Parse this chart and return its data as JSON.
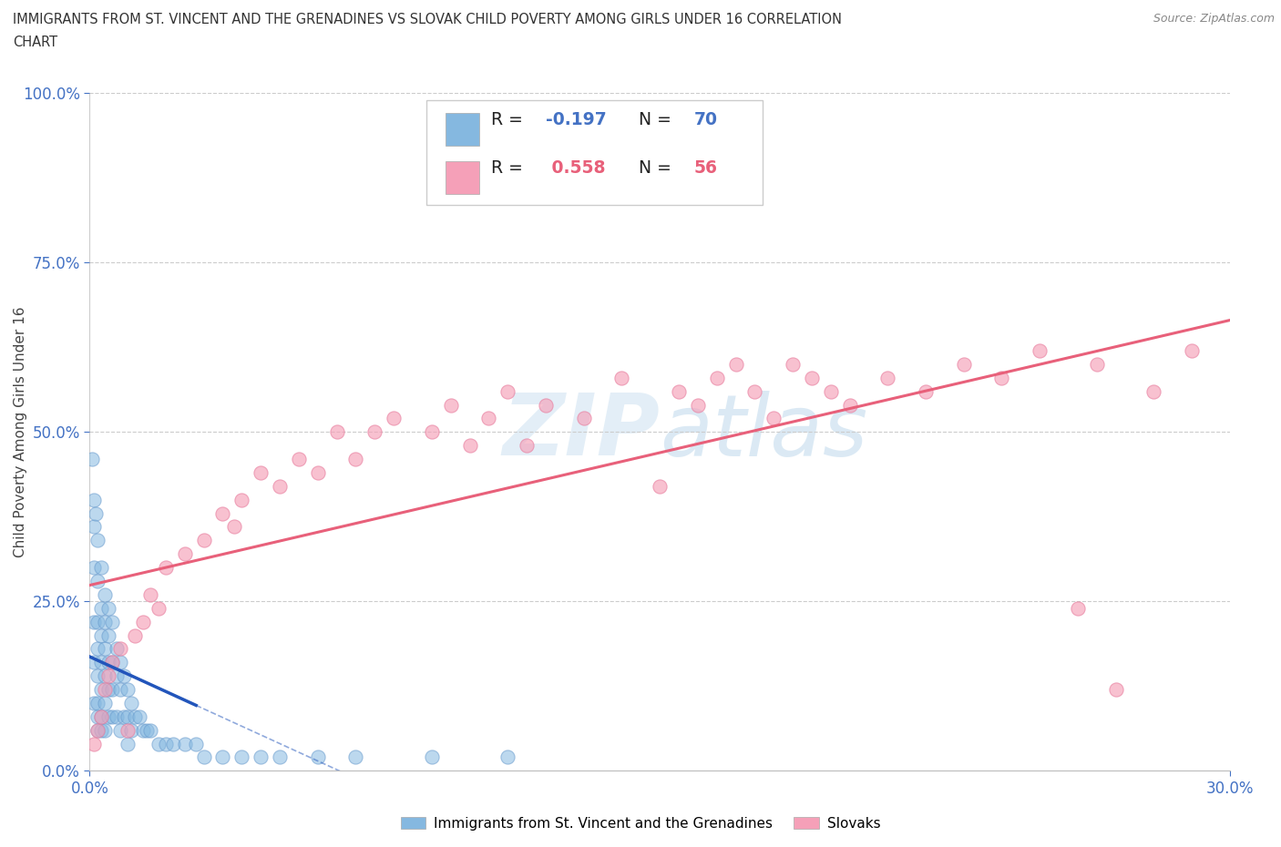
{
  "title_line1": "IMMIGRANTS FROM ST. VINCENT AND THE GRENADINES VS SLOVAK CHILD POVERTY AMONG GIRLS UNDER 16 CORRELATION",
  "title_line2": "CHART",
  "source_text": "Source: ZipAtlas.com",
  "ylabel": "Child Poverty Among Girls Under 16",
  "xlim": [
    0.0,
    0.3
  ],
  "ylim": [
    0.0,
    1.0
  ],
  "blue_R": -0.197,
  "blue_N": 70,
  "pink_R": 0.558,
  "pink_N": 56,
  "blue_scatter_color": "#85b8e0",
  "pink_scatter_color": "#f5a0b8",
  "blue_line_color": "#2255bb",
  "pink_line_color": "#e8607a",
  "text_color_blue": "#4472c4",
  "text_color_pink": "#e8607a",
  "watermark_color": "#c8dff0",
  "legend_label_blue": "Immigrants from St. Vincent and the Grenadines",
  "legend_label_pink": "Slovaks",
  "blue_x": [
    0.0005,
    0.001,
    0.001,
    0.001,
    0.001,
    0.001,
    0.001,
    0.0015,
    0.002,
    0.002,
    0.002,
    0.002,
    0.002,
    0.002,
    0.002,
    0.002,
    0.003,
    0.003,
    0.003,
    0.003,
    0.003,
    0.003,
    0.003,
    0.004,
    0.004,
    0.004,
    0.004,
    0.004,
    0.004,
    0.005,
    0.005,
    0.005,
    0.005,
    0.005,
    0.006,
    0.006,
    0.006,
    0.006,
    0.007,
    0.007,
    0.007,
    0.008,
    0.008,
    0.008,
    0.009,
    0.009,
    0.01,
    0.01,
    0.01,
    0.011,
    0.011,
    0.012,
    0.013,
    0.014,
    0.015,
    0.016,
    0.018,
    0.02,
    0.022,
    0.025,
    0.028,
    0.03,
    0.035,
    0.04,
    0.045,
    0.05,
    0.06,
    0.07,
    0.09,
    0.11
  ],
  "blue_y": [
    0.46,
    0.4,
    0.36,
    0.3,
    0.22,
    0.16,
    0.1,
    0.38,
    0.34,
    0.28,
    0.22,
    0.18,
    0.14,
    0.1,
    0.08,
    0.06,
    0.3,
    0.24,
    0.2,
    0.16,
    0.12,
    0.08,
    0.06,
    0.26,
    0.22,
    0.18,
    0.14,
    0.1,
    0.06,
    0.24,
    0.2,
    0.16,
    0.12,
    0.08,
    0.22,
    0.16,
    0.12,
    0.08,
    0.18,
    0.14,
    0.08,
    0.16,
    0.12,
    0.06,
    0.14,
    0.08,
    0.12,
    0.08,
    0.04,
    0.1,
    0.06,
    0.08,
    0.08,
    0.06,
    0.06,
    0.06,
    0.04,
    0.04,
    0.04,
    0.04,
    0.04,
    0.02,
    0.02,
    0.02,
    0.02,
    0.02,
    0.02,
    0.02,
    0.02,
    0.02
  ],
  "pink_x": [
    0.001,
    0.002,
    0.003,
    0.004,
    0.005,
    0.006,
    0.008,
    0.01,
    0.012,
    0.014,
    0.016,
    0.018,
    0.02,
    0.025,
    0.03,
    0.035,
    0.038,
    0.04,
    0.045,
    0.05,
    0.055,
    0.06,
    0.065,
    0.07,
    0.075,
    0.08,
    0.09,
    0.095,
    0.1,
    0.105,
    0.11,
    0.115,
    0.12,
    0.13,
    0.14,
    0.15,
    0.155,
    0.16,
    0.165,
    0.17,
    0.175,
    0.18,
    0.185,
    0.19,
    0.195,
    0.2,
    0.21,
    0.22,
    0.23,
    0.24,
    0.25,
    0.26,
    0.265,
    0.27,
    0.28,
    0.29
  ],
  "pink_y": [
    0.04,
    0.06,
    0.08,
    0.12,
    0.14,
    0.16,
    0.18,
    0.06,
    0.2,
    0.22,
    0.26,
    0.24,
    0.3,
    0.32,
    0.34,
    0.38,
    0.36,
    0.4,
    0.44,
    0.42,
    0.46,
    0.44,
    0.5,
    0.46,
    0.5,
    0.52,
    0.5,
    0.54,
    0.48,
    0.52,
    0.56,
    0.48,
    0.54,
    0.52,
    0.58,
    0.42,
    0.56,
    0.54,
    0.58,
    0.6,
    0.56,
    0.52,
    0.6,
    0.58,
    0.56,
    0.54,
    0.58,
    0.56,
    0.6,
    0.58,
    0.62,
    0.24,
    0.6,
    0.12,
    0.56,
    0.62
  ]
}
